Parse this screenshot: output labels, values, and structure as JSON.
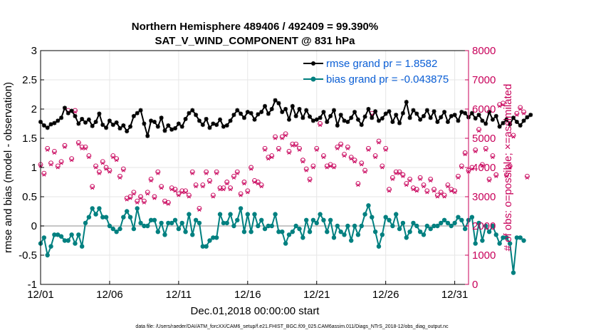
{
  "chart_data": {
    "type": "line",
    "title_line1": "Northern Hemisphere 489406 / 492409 = 99.390%",
    "title_line2": "SAT_V_WIND_COMPONENT @ 831 hPa",
    "xlabel": "Dec.01,2018 00:00:00 start",
    "ylabel": "rmse and bias (model - observation)",
    "ylabel_right": "# of obs: o=possible; ×=assimilated",
    "footer": "data file: /Users/raeder/DAI/ATM_forcXX/CAM6_setup/f.e21.FHIST_BGC.f09_025.CAM6assim.011/Diags_NTrS_2018-12/obs_diag_output.nc",
    "xlim": [
      1,
      32
    ],
    "ylim": [
      -1,
      3
    ],
    "ylim_right": [
      0,
      8000
    ],
    "x_ticks": [
      1,
      6,
      11,
      16,
      21,
      26,
      31
    ],
    "x_tick_labels": [
      "12/01",
      "12/06",
      "12/11",
      "12/16",
      "12/21",
      "12/26",
      "12/31"
    ],
    "y_ticks": [
      -1,
      -0.5,
      0,
      0.5,
      1,
      1.5,
      2,
      2.5,
      3
    ],
    "y_tick_labels": [
      "-1",
      "-0.5",
      "0",
      "0.5",
      "1",
      "1.5",
      "2",
      "2.5",
      "3"
    ],
    "y_ticks_right": [
      0,
      1000,
      2000,
      3000,
      4000,
      5000,
      6000,
      7000,
      8000
    ],
    "y_tick_labels_right": [
      "0",
      "1000",
      "2000",
      "3000",
      "4000",
      "5000",
      "6000",
      "7000",
      "8000"
    ],
    "legend": {
      "location": "top-right",
      "rmse_label": "rmse grand pr = 1.8582",
      "bias_label": "bias grand pr = -0.043875"
    },
    "colors": {
      "rmse": "#000000",
      "bias": "#008080",
      "obs": "#c8005a",
      "zero_line": "#b3b3b3"
    },
    "x_start": 1,
    "x_step": 0.25,
    "series": [
      {
        "name": "rmse",
        "values": [
          1.78,
          1.72,
          1.68,
          1.74,
          1.76,
          1.8,
          1.85,
          2.02,
          1.93,
          1.97,
          1.88,
          1.75,
          1.83,
          1.77,
          1.82,
          1.71,
          1.78,
          1.92,
          1.73,
          1.68,
          1.8,
          1.73,
          1.77,
          1.67,
          1.72,
          1.62,
          1.7,
          1.88,
          1.93,
          1.98,
          1.75,
          1.54,
          1.8,
          1.78,
          1.7,
          1.85,
          1.63,
          1.72,
          1.65,
          1.67,
          1.75,
          1.7,
          1.83,
          1.93,
          1.98,
          1.9,
          1.8,
          1.73,
          1.83,
          1.68,
          1.75,
          1.73,
          1.82,
          1.7,
          1.72,
          1.8,
          1.9,
          1.98,
          1.92,
          1.85,
          1.95,
          1.93,
          1.82,
          1.91,
          1.95,
          2.05,
          1.92,
          2.0,
          2.15,
          2.1,
          1.95,
          2.0,
          1.82,
          2.05,
          1.88,
          2.0,
          1.85,
          1.98,
          1.87,
          1.8,
          1.82,
          1.85,
          1.95,
          1.78,
          1.88,
          1.98,
          1.72,
          1.9,
          1.8,
          1.78,
          1.85,
          1.95,
          1.82,
          1.73,
          1.87,
          2.0,
          1.85,
          1.96,
          1.8,
          1.84,
          1.92,
          1.96,
          1.78,
          1.9,
          1.76,
          1.93,
          2.12,
          1.85,
          1.98,
          1.92,
          1.82,
          1.88,
          1.98,
          1.85,
          1.96,
          1.78,
          1.86,
          1.95,
          1.78,
          1.88,
          1.9,
          1.8,
          1.95,
          1.93,
          1.86,
          1.93,
          1.84,
          1.9,
          1.8,
          1.75,
          1.95,
          1.82,
          1.88,
          1.7,
          1.76,
          1.82,
          1.74,
          1.85,
          1.78,
          1.72,
          1.8,
          1.86,
          1.9
        ]
      },
      {
        "name": "bias",
        "values": [
          -0.3,
          -0.2,
          -0.5,
          -0.35,
          -0.15,
          -0.15,
          -0.18,
          -0.25,
          -0.25,
          -0.15,
          -0.3,
          -0.15,
          -0.35,
          0.05,
          0.15,
          0.3,
          0.2,
          0.3,
          0.15,
          0.15,
          0.0,
          -0.05,
          -0.1,
          -0.05,
          0.15,
          0.25,
          0.15,
          -0.05,
          0.3,
          0.05,
          0.0,
          0.0,
          0.1,
          0.1,
          -0.1,
          0.05,
          -0.15,
          0.05,
          0.05,
          0.1,
          -0.05,
          0.05,
          -0.1,
          0.2,
          -0.15,
          0.1,
          0.05,
          -0.35,
          -0.35,
          -0.25,
          -0.2,
          -0.2,
          0.2,
          0.05,
          0.05,
          0.2,
          0.0,
          0.1,
          0.3,
          -0.1,
          0.2,
          -0.1,
          0.2,
          0.0,
          0.1,
          -0.05,
          0.0,
          0.0,
          0.2,
          -0.1,
          -0.1,
          -0.3,
          -0.15,
          -0.1,
          0.0,
          -0.05,
          -0.2,
          0.1,
          -0.1,
          0.1,
          0.05,
          0.2,
          0.1,
          -0.1,
          0.1,
          -0.2,
          0.0,
          -0.1,
          -0.15,
          0.0,
          -0.25,
          0.0,
          -0.15,
          0.0,
          0.2,
          0.35,
          0.15,
          -0.1,
          -0.35,
          -0.15,
          0.15,
          0.1,
          0.0,
          0.2,
          -0.05,
          0.05,
          -0.2,
          -0.1,
          0.05,
          0.0,
          -0.1,
          -0.15,
          0.0,
          -0.05,
          0.0,
          0.0,
          0.05,
          0.1,
          0.05,
          0.0,
          0.05,
          0.15,
          0.1,
          -0.05,
          0.1,
          0.15,
          -0.3,
          0.05,
          -0.25,
          0.0,
          -0.1,
          0.0,
          -0.15,
          -0.3,
          -0.2,
          -0.2,
          -0.3,
          -0.8,
          -0.2,
          -0.2,
          -0.25
        ]
      },
      {
        "name": "obs_possible",
        "values": [
          4100,
          3800,
          4650,
          4150,
          4550,
          4050,
          4200,
          4750,
          5950,
          4300,
          5950,
          4850,
          4700,
          4700,
          4400,
          3350,
          4050,
          3850,
          4200,
          4000,
          3900,
          4400,
          4300,
          3700,
          3950,
          2950,
          3000,
          3150,
          2850,
          3000,
          2850,
          3150,
          3600,
          3000,
          3850,
          3350,
          2850,
          2800,
          3300,
          3250,
          3100,
          3200,
          3200,
          3050,
          3850,
          3400,
          2600,
          3400,
          3850,
          3550,
          3050,
          3850,
          3300,
          3300,
          3500,
          3300,
          3700,
          3850,
          3100,
          3500,
          3200,
          4000,
          3550,
          3500,
          3400,
          4650,
          4350,
          4400,
          5050,
          4650,
          5050,
          5150,
          4550,
          4800,
          4800,
          4650,
          4250,
          3950,
          3600,
          4050,
          4650,
          5500,
          4400,
          4050,
          4100,
          4050,
          4700,
          4800,
          4450,
          4700,
          4350,
          4250,
          3450,
          4150,
          3900,
          4650,
          5850,
          4400,
          4900,
          4050,
          4650,
          3250,
          3650,
          3850,
          3850,
          3750,
          3450,
          3600,
          3300,
          3250,
          3650,
          3400,
          3200,
          3600,
          3250,
          3050,
          3150,
          3050,
          3400,
          3250,
          3200,
          3700,
          4050,
          4500,
          3900,
          4000,
          4600,
          5300,
          4100,
          4650,
          3600,
          4400,
          3750,
          6150,
          6200,
          3750,
          4050,
          5100,
          5850,
          6050,
          5900,
          3700
        ]
      },
      {
        "name": "obs_assimilated",
        "values": [
          4050,
          3750,
          4600,
          4100,
          4500,
          4000,
          4150,
          4700,
          5900,
          4250,
          5900,
          4800,
          4650,
          4650,
          4350,
          3300,
          4000,
          3800,
          4150,
          3950,
          3850,
          4350,
          4250,
          3650,
          3900,
          2900,
          2950,
          3100,
          2800,
          2950,
          2800,
          3100,
          3550,
          2950,
          3800,
          3300,
          2800,
          2750,
          3250,
          3200,
          3050,
          3150,
          3150,
          3000,
          3800,
          3350,
          2550,
          3350,
          3800,
          3500,
          3000,
          3800,
          3250,
          3250,
          3450,
          3250,
          3650,
          3800,
          3050,
          3450,
          3150,
          3950,
          3500,
          3450,
          3350,
          4600,
          4300,
          4350,
          5000,
          4600,
          5000,
          5100,
          4500,
          4750,
          4750,
          4600,
          4200,
          3900,
          3550,
          4000,
          4600,
          5450,
          4350,
          4000,
          4050,
          4000,
          4650,
          4750,
          4400,
          4650,
          4300,
          4200,
          3400,
          4100,
          3850,
          4600,
          5800,
          4350,
          4850,
          4000,
          4600,
          3200,
          3600,
          3800,
          3800,
          3700,
          3400,
          3550,
          3250,
          3200,
          3600,
          3350,
          3150,
          3550,
          3200,
          3000,
          3100,
          3000,
          3350,
          3200,
          3150,
          3650,
          4000,
          4450,
          3850,
          3950,
          4550,
          5250,
          4050,
          4600,
          3550,
          4350,
          3700,
          6100,
          6150,
          3700,
          4000,
          5050,
          5800,
          6000,
          5850,
          3650
        ]
      }
    ]
  }
}
